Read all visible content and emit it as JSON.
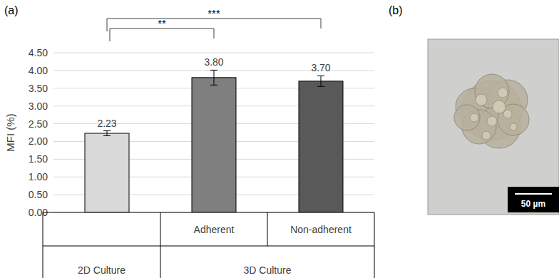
{
  "panels": {
    "a": "(a)",
    "b": "(b)"
  },
  "chart_data": {
    "type": "bar",
    "categories": [
      null,
      "Adherent",
      "Non-adherent"
    ],
    "groups": [
      "2D Culture",
      "3D Culture",
      "3D Culture"
    ],
    "values": [
      2.23,
      3.8,
      3.7
    ],
    "value_labels": [
      "2.23",
      "3.80",
      "3.70"
    ],
    "errors": [
      0.07,
      0.21,
      0.15
    ],
    "colors": [
      "#d9d9d9",
      "#7f7f7f",
      "#595959"
    ],
    "y_label": "MFI (%)",
    "ylim": [
      0,
      4.5
    ],
    "yticks": [
      {
        "value": 0,
        "label": "0.00"
      },
      {
        "value": 0.5,
        "label": "0.50"
      },
      {
        "value": 1,
        "label": "1.00"
      },
      {
        "value": 1.5,
        "label": "1.50"
      },
      {
        "value": 2,
        "label": "2.00"
      },
      {
        "value": 2.5,
        "label": "2.50"
      },
      {
        "value": 3,
        "label": "3.00"
      },
      {
        "value": 3.5,
        "label": "3.50"
      },
      {
        "value": 4,
        "label": "4.00"
      },
      {
        "value": 4.5,
        "label": "4.50"
      }
    ],
    "grid": true,
    "data_labels": true,
    "annotations": [
      {
        "text": "**",
        "from": 0,
        "to": 1
      },
      {
        "text": "***",
        "from": 0,
        "to": 2
      }
    ]
  },
  "image": {
    "scale_bar": "50 µm"
  }
}
